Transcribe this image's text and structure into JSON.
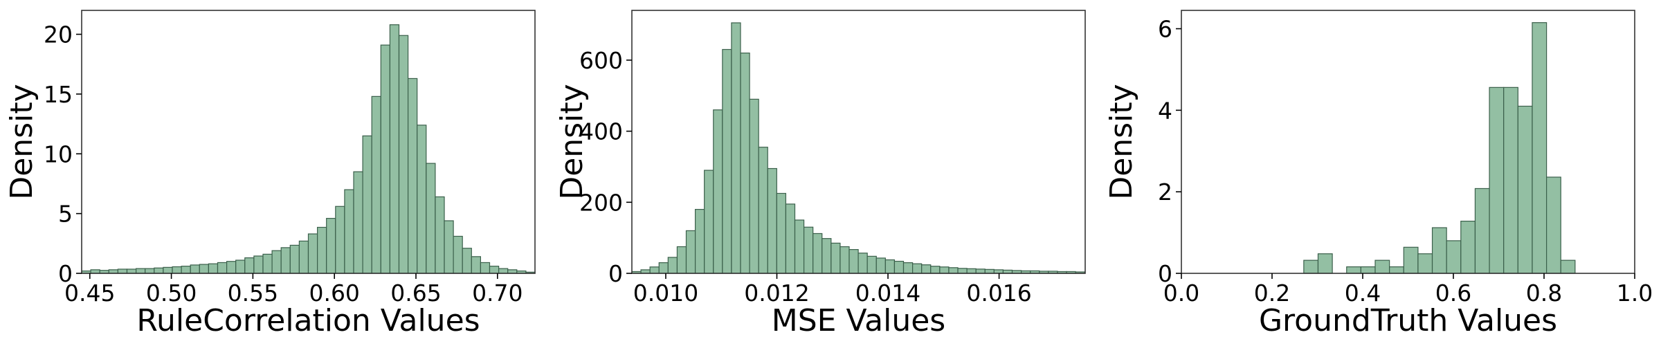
{
  "style": {
    "bar_color": "#93bfa3",
    "bar_edge_color": "#3a5f4a"
  },
  "chart_data": [
    {
      "type": "bar",
      "subtype": "histogram",
      "xlabel": "RuleCorrelation Values",
      "ylabel": "Density",
      "xlim": [
        0.445,
        0.723
      ],
      "ylim": [
        0,
        22
      ],
      "xticks": [
        0.45,
        0.5,
        0.55,
        0.6,
        0.65,
        0.7
      ],
      "xtick_labels": [
        "0.45",
        "0.50",
        "0.55",
        "0.60",
        "0.65",
        "0.70"
      ],
      "yticks": [
        0,
        5,
        10,
        15,
        20
      ],
      "ytick_labels": [
        "0",
        "5",
        "10",
        "15",
        "20"
      ],
      "bin_start": 0.445,
      "bin_width": 0.00556,
      "values": [
        0.2,
        0.3,
        0.25,
        0.3,
        0.35,
        0.35,
        0.4,
        0.4,
        0.45,
        0.5,
        0.55,
        0.6,
        0.7,
        0.75,
        0.8,
        0.9,
        1.0,
        1.1,
        1.3,
        1.45,
        1.6,
        1.9,
        2.15,
        2.35,
        2.7,
        3.3,
        3.85,
        4.6,
        5.6,
        7.0,
        8.5,
        11.5,
        14.8,
        19.1,
        20.8,
        19.9,
        16.3,
        12.4,
        9.2,
        6.4,
        4.4,
        3.1,
        2.1,
        1.4,
        0.9,
        0.6,
        0.4,
        0.3,
        0.2,
        0.1
      ],
      "grid": false
    },
    {
      "type": "bar",
      "subtype": "histogram",
      "xlabel": "MSE Values",
      "ylabel": "Density",
      "xlim": [
        0.00939,
        0.01755
      ],
      "ylim": [
        0,
        740
      ],
      "xticks": [
        0.01,
        0.012,
        0.014,
        0.016
      ],
      "xtick_labels": [
        "0.010",
        "0.012",
        "0.014",
        "0.016"
      ],
      "yticks": [
        0,
        200,
        400,
        600
      ],
      "ytick_labels": [
        "0",
        "200",
        "400",
        "600"
      ],
      "bin_start": 0.00939,
      "bin_width": 0.000163,
      "values": [
        5,
        10,
        18,
        30,
        45,
        75,
        120,
        180,
        290,
        460,
        630,
        705,
        620,
        490,
        355,
        295,
        225,
        195,
        150,
        130,
        112,
        98,
        85,
        75,
        67,
        57,
        48,
        43,
        38,
        34,
        30,
        27,
        24,
        20,
        18,
        16,
        14,
        13,
        12,
        11,
        10,
        9,
        8,
        7,
        7,
        6,
        6,
        5,
        5,
        4
      ],
      "grid": false
    },
    {
      "type": "bar",
      "subtype": "histogram",
      "xlabel": "GroundTruth Values",
      "ylabel": "Density",
      "xlim": [
        0.0,
        1.0
      ],
      "ylim": [
        0,
        6.45
      ],
      "xticks": [
        0.0,
        0.2,
        0.4,
        0.6,
        0.8,
        1.0
      ],
      "xtick_labels": [
        "0.0",
        "0.2",
        "0.4",
        "0.6",
        "0.8",
        "1.0"
      ],
      "yticks": [
        0,
        2,
        4,
        6
      ],
      "ytick_labels": [
        "0",
        "2",
        "4",
        "6"
      ],
      "bin_start": 0.27,
      "bin_width": 0.0315,
      "values": [
        0.32,
        0.48,
        0.0,
        0.16,
        0.16,
        0.32,
        0.16,
        0.64,
        0.48,
        1.12,
        0.8,
        1.28,
        2.08,
        4.56,
        4.56,
        4.1,
        6.15,
        2.36,
        0.32
      ],
      "grid": false
    }
  ]
}
